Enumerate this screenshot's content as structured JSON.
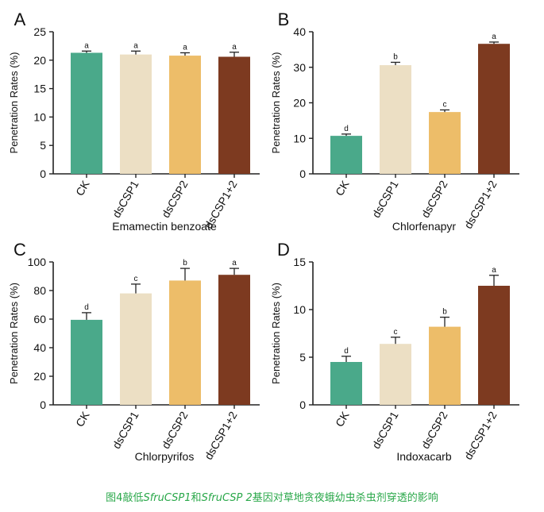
{
  "colors": {
    "ck": "#4aa98a",
    "dsCSP1": "#ecdfc4",
    "dsCSP2": "#edbd69",
    "dsCSP1_2": "#7d3a20",
    "caption": "#2aa84a"
  },
  "chart_data": [
    {
      "type": "bar",
      "panel": "A",
      "title": "Emamectin benzoate",
      "xlabel": "Emamectin benzoate",
      "ylabel": "Penetration Rates (%)",
      "categories": [
        "CK",
        "dsCSP1",
        "dsCSP2",
        "dsCSP1+2"
      ],
      "values": [
        21.3,
        21.0,
        20.8,
        20.6
      ],
      "errors": [
        0.3,
        0.6,
        0.5,
        0.8
      ],
      "letters": [
        "a",
        "a",
        "a",
        "a"
      ],
      "ylim": [
        0,
        25
      ],
      "yticks": [
        "0",
        "5",
        "10",
        "15",
        "20",
        "25"
      ]
    },
    {
      "type": "bar",
      "panel": "B",
      "title": "Chlorfenapyr",
      "xlabel": "Chlorfenapyr",
      "ylabel": "Penetration Rates (%)",
      "categories": [
        "CK",
        "dsCSP1",
        "dsCSP2",
        "dsCSP1+2"
      ],
      "values": [
        10.7,
        30.6,
        17.4,
        36.6
      ],
      "errors": [
        0.5,
        0.8,
        0.6,
        0.5
      ],
      "letters": [
        "d",
        "b",
        "c",
        "a"
      ],
      "ylim": [
        0,
        40
      ],
      "yticks": [
        "0",
        "10",
        "20",
        "30",
        "40"
      ]
    },
    {
      "type": "bar",
      "panel": "C",
      "title": "Chlorpyrifos",
      "xlabel": "Chlorpyrifos",
      "ylabel": "Penetration Rates (%)",
      "categories": [
        "CK",
        "dsCSP1",
        "dsCSP2",
        "dsCSP1+2"
      ],
      "values": [
        59.5,
        78.0,
        87.0,
        91.0
      ],
      "errors": [
        5.0,
        6.5,
        8.5,
        4.5
      ],
      "letters": [
        "d",
        "c",
        "b",
        "a"
      ],
      "ylim": [
        0,
        100
      ],
      "yticks": [
        "0",
        "20",
        "40",
        "60",
        "80",
        "100"
      ]
    },
    {
      "type": "bar",
      "panel": "D",
      "title": "Indoxacarb",
      "xlabel": "Indoxacarb",
      "ylabel": "Penetration Rates (%)",
      "categories": [
        "CK",
        "dsCSP1",
        "dsCSP2",
        "dsCSP1+2"
      ],
      "values": [
        4.5,
        6.4,
        8.2,
        12.5
      ],
      "errors": [
        0.6,
        0.7,
        1.0,
        1.1
      ],
      "letters": [
        "d",
        "c",
        "b",
        "a"
      ],
      "ylim": [
        0,
        15
      ],
      "yticks": [
        "0",
        "5",
        "10",
        "15"
      ]
    }
  ],
  "caption": {
    "prefix": "图4敲低",
    "gene1": "SfruCSP1",
    "and": "和",
    "gene2": "SfruCSP 2",
    "suffix": "基因对草地贪夜蛾幼虫杀虫剂穿透的影响"
  }
}
